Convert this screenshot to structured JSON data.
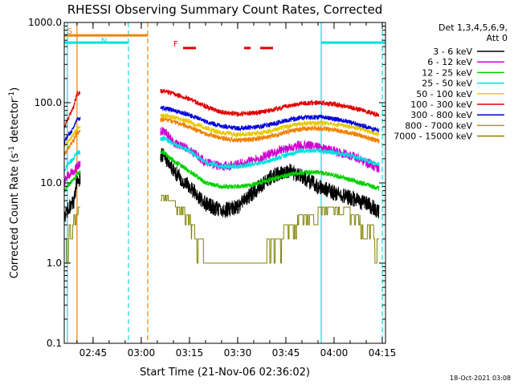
{
  "chart_data": {
    "type": "line",
    "title": "RHESSI Observing Summary Count Rates, Corrected",
    "xlabel": "Start Time (21-Nov-06 02:36:02)",
    "ylabel_main": "Corrected Count Rate (s",
    "ylabel_sup": "-1",
    "ylabel_mid": " detector",
    "ylabel_sup2": "-1",
    "ylabel_end": ")",
    "yscale": "log",
    "ylim": [
      0.1,
      1000
    ],
    "xlim": [
      "02:36:02",
      "04:16:00"
    ],
    "y_ticks": [
      {
        "value": 0.1,
        "label": "0.1"
      },
      {
        "value": 1,
        "label": "1.0"
      },
      {
        "value": 10,
        "label": "10.0"
      },
      {
        "value": 100,
        "label": "100.0"
      },
      {
        "value": 1000,
        "label": "1000.0"
      }
    ],
    "x_ticks": [
      {
        "t": "02:45",
        "label": "02:45"
      },
      {
        "t": "03:00",
        "label": "03:00"
      },
      {
        "t": "03:15",
        "label": "03:15"
      },
      {
        "t": "03:30",
        "label": "03:30"
      },
      {
        "t": "03:45",
        "label": "03:45"
      },
      {
        "t": "04:00",
        "label": "04:00"
      },
      {
        "t": "04:15",
        "label": "04:15"
      }
    ],
    "legend": {
      "header1": "Det 1,3,4,5,6,9,",
      "header2": "Att 0",
      "placement": "right"
    },
    "series": [
      {
        "name": "3 - 6 keV",
        "color": "#000000",
        "points": [
          [
            "02:36",
            3.5
          ],
          [
            "02:37",
            4.5
          ],
          [
            "02:39",
            6
          ],
          [
            "02:40",
            11
          ],
          [
            "03:07",
            22
          ],
          [
            "03:10",
            14
          ],
          [
            "03:15",
            9
          ],
          [
            "03:20",
            5.5
          ],
          [
            "03:25",
            4.5
          ],
          [
            "03:30",
            5
          ],
          [
            "03:34",
            7
          ],
          [
            "03:38",
            10
          ],
          [
            "03:42",
            13
          ],
          [
            "03:46",
            14
          ],
          [
            "03:50",
            12
          ],
          [
            "03:55",
            9
          ],
          [
            "04:00",
            7.5
          ],
          [
            "04:05",
            6.5
          ],
          [
            "04:10",
            5.5
          ],
          [
            "04:14",
            4.5
          ]
        ]
      },
      {
        "name": "6 - 12 keV",
        "color": "#d000d0",
        "points": [
          [
            "02:36",
            10
          ],
          [
            "02:37",
            12
          ],
          [
            "02:39",
            14
          ],
          [
            "02:40",
            16
          ],
          [
            "03:07",
            45
          ],
          [
            "03:10",
            32
          ],
          [
            "03:15",
            26
          ],
          [
            "03:20",
            18
          ],
          [
            "03:25",
            16
          ],
          [
            "03:30",
            17
          ],
          [
            "03:35",
            19
          ],
          [
            "03:40",
            23
          ],
          [
            "03:45",
            27
          ],
          [
            "03:50",
            30
          ],
          [
            "03:55",
            28
          ],
          [
            "04:00",
            25
          ],
          [
            "04:05",
            22
          ],
          [
            "04:10",
            18
          ],
          [
            "04:14",
            15
          ]
        ]
      },
      {
        "name": "12 - 25 keV",
        "color": "#00d000",
        "points": [
          [
            "02:36",
            8
          ],
          [
            "02:37",
            9
          ],
          [
            "02:39",
            11
          ],
          [
            "02:40",
            13
          ],
          [
            "03:07",
            24
          ],
          [
            "03:10",
            19
          ],
          [
            "03:15",
            14
          ],
          [
            "03:20",
            10
          ],
          [
            "03:25",
            9
          ],
          [
            "03:30",
            9
          ],
          [
            "03:35",
            9.5
          ],
          [
            "03:40",
            11
          ],
          [
            "03:45",
            12.5
          ],
          [
            "03:50",
            13.5
          ],
          [
            "03:55",
            13.5
          ],
          [
            "04:00",
            12.5
          ],
          [
            "04:05",
            11
          ],
          [
            "04:10",
            9.5
          ],
          [
            "04:14",
            8.5
          ]
        ]
      },
      {
        "name": "25 - 50 keV",
        "color": "#00e0e0",
        "points": [
          [
            "02:36",
            14
          ],
          [
            "02:37",
            17
          ],
          [
            "02:39",
            20
          ],
          [
            "02:40",
            24
          ],
          [
            "03:07",
            36
          ],
          [
            "03:10",
            31
          ],
          [
            "03:15",
            25
          ],
          [
            "03:20",
            18
          ],
          [
            "03:25",
            16
          ],
          [
            "03:30",
            16
          ],
          [
            "03:35",
            17
          ],
          [
            "03:40",
            19
          ],
          [
            "03:45",
            22
          ],
          [
            "03:50",
            25
          ],
          [
            "03:55",
            25
          ],
          [
            "04:00",
            24
          ],
          [
            "04:05",
            22
          ],
          [
            "04:10",
            19
          ],
          [
            "04:14",
            17
          ]
        ]
      },
      {
        "name": "50 - 100 keV",
        "color": "#e8c800",
        "points": [
          [
            "02:36",
            28
          ],
          [
            "02:37",
            32
          ],
          [
            "02:39",
            40
          ],
          [
            "02:40",
            48
          ],
          [
            "03:07",
            70
          ],
          [
            "03:10",
            66
          ],
          [
            "03:15",
            58
          ],
          [
            "03:20",
            48
          ],
          [
            "03:25",
            42
          ],
          [
            "03:30",
            40
          ],
          [
            "03:35",
            41
          ],
          [
            "03:40",
            44
          ],
          [
            "03:45",
            50
          ],
          [
            "03:50",
            55
          ],
          [
            "03:55",
            56
          ],
          [
            "04:00",
            54
          ],
          [
            "04:05",
            50
          ],
          [
            "04:10",
            45
          ],
          [
            "04:14",
            40
          ]
        ]
      },
      {
        "name": "100 - 300 keV",
        "color": "#e00000",
        "points": [
          [
            "02:36",
            48
          ],
          [
            "02:37",
            60
          ],
          [
            "02:39",
            90
          ],
          [
            "02:40",
            130
          ],
          [
            "03:07",
            140
          ],
          [
            "03:10",
            130
          ],
          [
            "03:15",
            110
          ],
          [
            "03:20",
            90
          ],
          [
            "03:25",
            76
          ],
          [
            "03:30",
            72
          ],
          [
            "03:35",
            74
          ],
          [
            "03:40",
            80
          ],
          [
            "03:45",
            90
          ],
          [
            "03:50",
            98
          ],
          [
            "03:55",
            100
          ],
          [
            "04:00",
            96
          ],
          [
            "04:05",
            88
          ],
          [
            "04:10",
            78
          ],
          [
            "04:14",
            70
          ]
        ]
      },
      {
        "name": "300 - 800 keV",
        "color": "#0000d8",
        "points": [
          [
            "02:36",
            32
          ],
          [
            "02:37",
            38
          ],
          [
            "02:39",
            48
          ],
          [
            "02:40",
            62
          ],
          [
            "03:07",
            85
          ],
          [
            "03:10",
            80
          ],
          [
            "03:15",
            70
          ],
          [
            "03:20",
            58
          ],
          [
            "03:25",
            51
          ],
          [
            "03:30",
            48
          ],
          [
            "03:35",
            49
          ],
          [
            "03:40",
            53
          ],
          [
            "03:45",
            60
          ],
          [
            "03:50",
            65
          ],
          [
            "03:55",
            66
          ],
          [
            "04:00",
            63
          ],
          [
            "04:05",
            57
          ],
          [
            "04:10",
            50
          ],
          [
            "04:14",
            45
          ]
        ]
      },
      {
        "name": "800 - 7000 keV",
        "color": "#f08000",
        "points": [
          [
            "02:36",
            22
          ],
          [
            "02:37",
            26
          ],
          [
            "02:39",
            34
          ],
          [
            "02:40",
            42
          ],
          [
            "03:07",
            62
          ],
          [
            "03:10",
            58
          ],
          [
            "03:15",
            50
          ],
          [
            "03:20",
            41
          ],
          [
            "03:25",
            36
          ],
          [
            "03:30",
            34
          ],
          [
            "03:35",
            35
          ],
          [
            "03:40",
            38
          ],
          [
            "03:45",
            43
          ],
          [
            "03:50",
            47
          ],
          [
            "03:55",
            48
          ],
          [
            "04:00",
            46
          ],
          [
            "04:05",
            42
          ],
          [
            "04:10",
            37
          ],
          [
            "04:14",
            33
          ]
        ]
      },
      {
        "name": "7000 - 15000 keV",
        "color": "#808000",
        "points": [
          [
            "02:36",
            1.5
          ],
          [
            "02:37",
            2.2
          ],
          [
            "02:39",
            3.5
          ],
          [
            "02:40",
            4.5
          ],
          [
            "03:07",
            7
          ],
          [
            "03:10",
            6
          ],
          [
            "03:15",
            4
          ],
          [
            "03:18",
            2
          ],
          [
            "03:20",
            1.3
          ],
          [
            "03:30",
            1.3
          ],
          [
            "03:38",
            1.3
          ],
          [
            "03:42",
            2.2
          ],
          [
            "03:46",
            3
          ],
          [
            "03:50",
            3.8
          ],
          [
            "03:55",
            4.5
          ],
          [
            "04:00",
            4.8
          ],
          [
            "04:05",
            4.5
          ],
          [
            "04:10",
            3
          ],
          [
            "04:14",
            2.2
          ]
        ]
      }
    ],
    "data_gaps": [
      [
        "02:41",
        "03:06"
      ]
    ],
    "flag_bars": [
      {
        "label": "S",
        "color": "#f08000",
        "start": "02:36",
        "end": "03:02",
        "y": 690
      },
      {
        "label": "N",
        "color": "#00e0e0",
        "start": "02:36",
        "end": "02:56",
        "y": 560
      },
      {
        "label": "",
        "color": "#00e0e0",
        "start": "03:56",
        "end": "04:16",
        "y": 560
      },
      {
        "label": "F",
        "color": "#e00000",
        "segments": [
          [
            "03:13",
            "03:17"
          ],
          [
            "03:32",
            "03:34"
          ],
          [
            "03:37",
            "03:41"
          ]
        ],
        "y": 480
      }
    ],
    "vertical_markers": [
      {
        "t": "02:37",
        "color": "#00e0e0",
        "style": "solid"
      },
      {
        "t": "02:40",
        "color": "#f08000",
        "style": "solid"
      },
      {
        "t": "02:56",
        "color": "#00e0e0",
        "style": "dashed"
      },
      {
        "t": "03:02",
        "color": "#f08000",
        "style": "dashed"
      },
      {
        "t": "03:56",
        "color": "#00e0e0",
        "style": "solid"
      },
      {
        "t": "04:15",
        "color": "#00e0e0",
        "style": "dashed"
      }
    ],
    "grid": false,
    "date_stamp": "18-Oct-2021 03:08"
  }
}
